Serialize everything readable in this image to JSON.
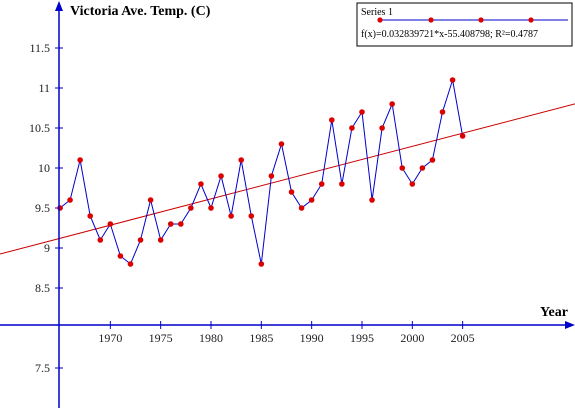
{
  "chart_data": {
    "type": "line",
    "ylabel": "Victoria Ave. Temp. (C)",
    "xlabel": "Year",
    "x_ticks": [
      1970,
      1975,
      1980,
      1985,
      1990,
      1995,
      2000,
      2005
    ],
    "y_ticks": [
      7.5,
      8.5,
      9,
      9.5,
      10,
      10.5,
      11,
      11.5
    ],
    "xlim": [
      1964.9,
      2010.4
    ],
    "ylim": [
      7.0,
      12.0
    ],
    "series": [
      {
        "name": "Series 1",
        "color": "#0000cc",
        "marker_color": "#dd0000",
        "x": [
          1965,
          1966,
          1967,
          1968,
          1969,
          1970,
          1971,
          1972,
          1973,
          1974,
          1975,
          1976,
          1977,
          1978,
          1979,
          1980,
          1981,
          1982,
          1983,
          1984,
          1985,
          1986,
          1987,
          1988,
          1989,
          1990,
          1991,
          1992,
          1993,
          1994,
          1995,
          1996,
          1997,
          1998,
          1999,
          2000,
          2001,
          2002,
          2003,
          2004,
          2005
        ],
        "y": [
          9.5,
          9.6,
          10.1,
          9.4,
          9.1,
          9.3,
          8.9,
          8.8,
          9.1,
          9.6,
          9.1,
          9.3,
          9.3,
          9.5,
          9.8,
          9.5,
          9.9,
          9.4,
          10.1,
          9.4,
          8.8,
          9.9,
          10.3,
          9.7,
          9.5,
          9.6,
          9.8,
          10.6,
          9.8,
          10.5,
          10.7,
          9.6,
          10.5,
          10.8,
          10.0,
          9.8,
          10.0,
          10.1,
          10.7,
          11.1,
          10.4
        ]
      }
    ],
    "trendline": {
      "equation": "f(x)=0.032839721*x-55.408798; R²=0.4787",
      "slope": 0.032839721,
      "intercept": -55.408798,
      "color": "#cc0000"
    },
    "legend_position": "top-right"
  }
}
